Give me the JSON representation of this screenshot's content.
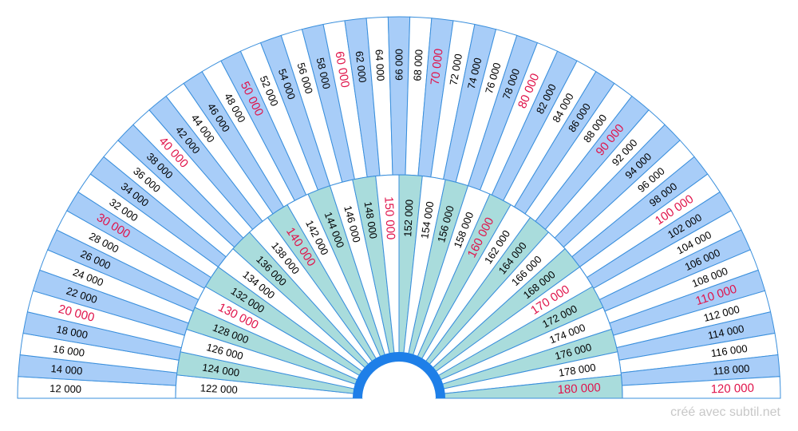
{
  "outer_ring": {
    "labels": [
      "12 000",
      "14 000",
      "16 000",
      "18 000",
      "20 000",
      "22 000",
      "24 000",
      "26 000",
      "28 000",
      "30 000",
      "32 000",
      "34 000",
      "36 000",
      "38 000",
      "40 000",
      "42 000",
      "44 000",
      "46 000",
      "48 000",
      "50 000",
      "52 000",
      "54 000",
      "56 000",
      "58 000",
      "60 000",
      "62 000",
      "64 000",
      "66 000",
      "68 000",
      "70 000",
      "72 000",
      "74 000",
      "76 000",
      "78 000",
      "80 000",
      "82 000",
      "84 000",
      "86 000",
      "88 000",
      "90 000",
      "92 000",
      "94 000",
      "96 000",
      "98 000",
      "100 000",
      "102 000",
      "104 000",
      "106 000",
      "108 000",
      "110 000",
      "112 000",
      "114 000",
      "116 000",
      "118 000",
      "120 000"
    ],
    "highlighted": [
      "20 000",
      "30 000",
      "40 000",
      "50 000",
      "60 000",
      "70 000",
      "80 000",
      "90 000",
      "100 000",
      "110 000",
      "120 000"
    ]
  },
  "inner_ring": {
    "labels": [
      "122 000",
      "124 000",
      "126  000",
      "128 000",
      "130 000",
      "132 000",
      "134 000",
      "136 000",
      "138 000",
      "140 000",
      "142 000",
      "144 000",
      "146 000",
      "148 000",
      "150 000",
      "152 000",
      "154 000",
      "156 000",
      "158 000",
      "160 000",
      "162 000",
      "164 000",
      "166 000",
      "168 000",
      "170 000",
      "172 000",
      "174 000",
      "176 000",
      "178 000",
      "180 000"
    ],
    "highlighted": [
      "130 000",
      "140 000",
      "150 000",
      "160 000",
      "170 000",
      "180 000"
    ]
  },
  "colors": {
    "outer_fill": "#a8cdf8",
    "inner_fill": "#a9dcdc",
    "plain_fill": "#ffffff",
    "stroke": "#3a8fdc",
    "hub": "#1e7fe8",
    "label": "#000000",
    "highlight": "#e0134a"
  },
  "footer": {
    "credit": "créé avec subtil.net"
  }
}
